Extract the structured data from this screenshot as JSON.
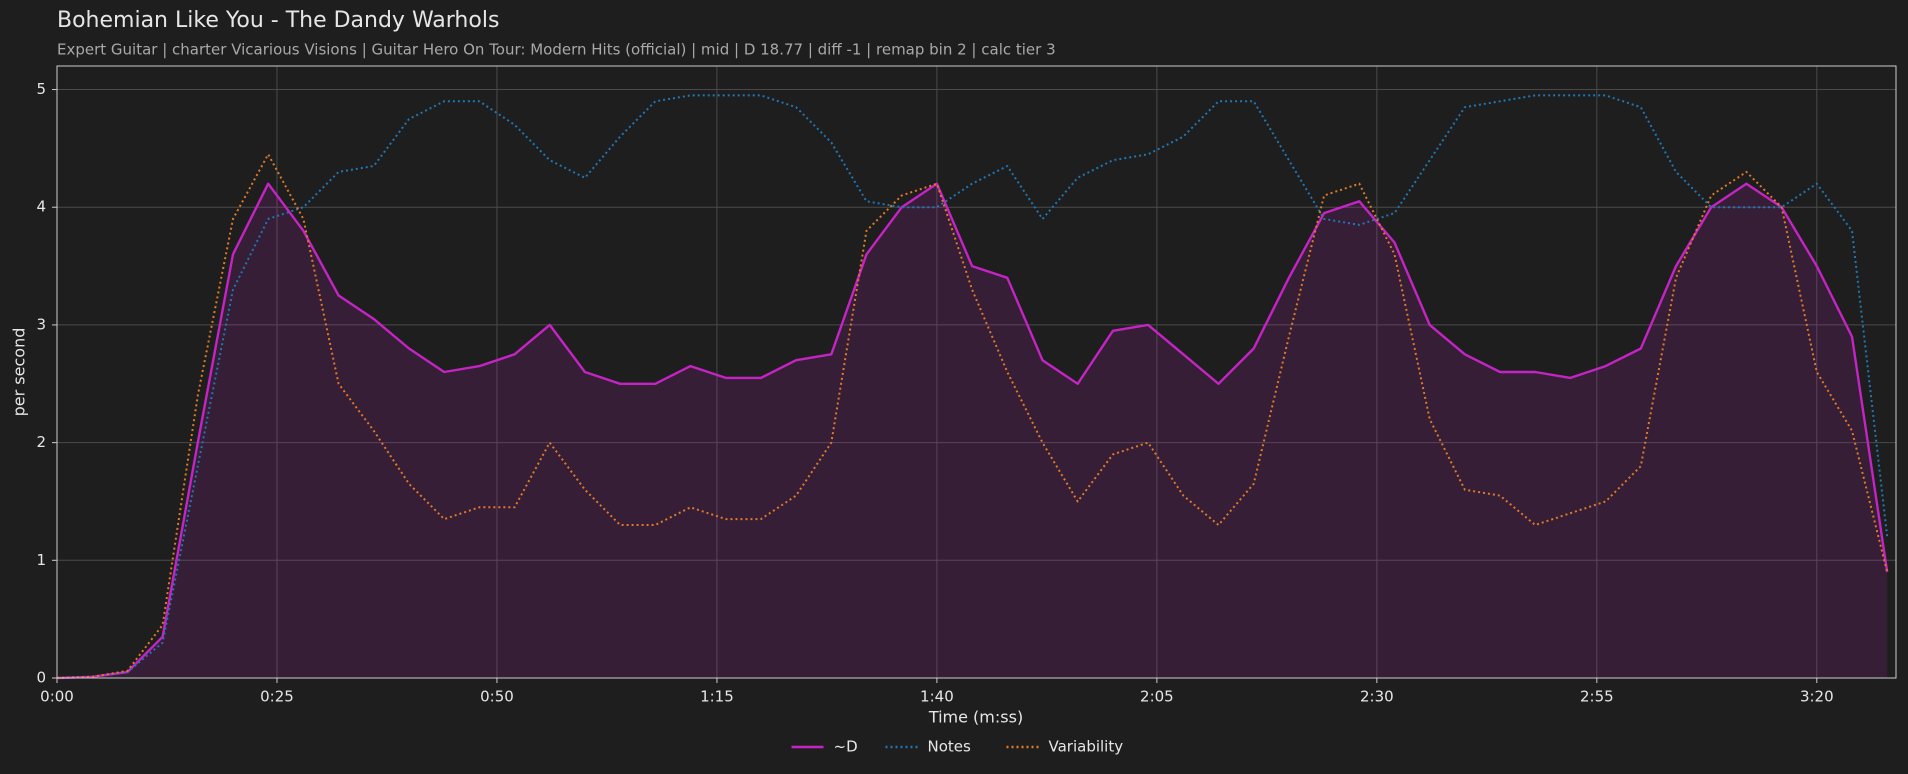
{
  "chart_data": {
    "type": "line",
    "title": "Bohemian Like You - The Dandy Warhols",
    "subtitle": "Expert Guitar  |  charter Vicarious Visions  |  Guitar Hero On Tour: Modern Hits (official)  |  mid  |  D 18.77  |  diff -1  |  remap bin 2  |  calc tier 3",
    "x_label": "Time (m:ss)",
    "y_label": "per second",
    "x": [
      0,
      4,
      8,
      12,
      16,
      20,
      24,
      28,
      32,
      36,
      40,
      44,
      48,
      52,
      56,
      60,
      64,
      68,
      72,
      76,
      80,
      84,
      88,
      92,
      96,
      100,
      104,
      108,
      112,
      116,
      120,
      124,
      128,
      132,
      136,
      140,
      144,
      148,
      152,
      156,
      160,
      164,
      168,
      172,
      176,
      180,
      184,
      188,
      192,
      196,
      200,
      204,
      208
    ],
    "series": [
      {
        "name": "~D",
        "color": "#c424c4",
        "style": "solid",
        "fill": true,
        "values": [
          0,
          0.01,
          0.05,
          0.35,
          2.0,
          3.6,
          4.2,
          3.8,
          3.25,
          3.05,
          2.8,
          2.6,
          2.65,
          2.75,
          3.0,
          2.6,
          2.5,
          2.5,
          2.65,
          2.55,
          2.55,
          2.7,
          2.75,
          3.6,
          4.0,
          4.2,
          3.5,
          3.4,
          2.7,
          2.5,
          2.95,
          3.0,
          2.75,
          2.5,
          2.8,
          3.4,
          3.95,
          4.05,
          3.7,
          3.0,
          2.75,
          2.6,
          2.6,
          2.55,
          2.65,
          2.8,
          3.5,
          4.0,
          4.2,
          4.0,
          3.5,
          2.9,
          0.9
        ]
      },
      {
        "name": "Notes",
        "color": "#1f77b4",
        "style": "dotted",
        "fill": false,
        "values": [
          0,
          0.01,
          0.05,
          0.3,
          1.8,
          3.3,
          3.9,
          4.0,
          4.3,
          4.35,
          4.75,
          4.9,
          4.9,
          4.7,
          4.4,
          4.25,
          4.6,
          4.9,
          4.95,
          4.95,
          4.95,
          4.85,
          4.55,
          4.05,
          4.0,
          4.0,
          4.2,
          4.35,
          3.9,
          4.25,
          4.4,
          4.45,
          4.6,
          4.9,
          4.9,
          4.4,
          3.9,
          3.85,
          3.95,
          4.4,
          4.85,
          4.9,
          4.95,
          4.95,
          4.95,
          4.85,
          4.3,
          4.0,
          4.0,
          4.0,
          4.2,
          3.8,
          1.2
        ]
      },
      {
        "name": "Variability",
        "color": "#e07a28",
        "style": "dotted",
        "fill": false,
        "values": [
          0,
          0.01,
          0.06,
          0.45,
          2.4,
          3.9,
          4.45,
          3.9,
          2.5,
          2.1,
          1.65,
          1.35,
          1.45,
          1.45,
          2.0,
          1.6,
          1.3,
          1.3,
          1.45,
          1.35,
          1.35,
          1.55,
          2.0,
          3.8,
          4.1,
          4.2,
          3.3,
          2.6,
          2.0,
          1.5,
          1.9,
          2.0,
          1.55,
          1.3,
          1.65,
          2.9,
          4.1,
          4.2,
          3.6,
          2.2,
          1.6,
          1.55,
          1.3,
          1.4,
          1.5,
          1.8,
          3.4,
          4.1,
          4.3,
          4.0,
          2.6,
          2.1,
          0.9
        ]
      }
    ],
    "xlim": [
      0,
      209
    ],
    "xticks": [
      {
        "value": 0,
        "label": "0:00"
      },
      {
        "value": 25,
        "label": "0:25"
      },
      {
        "value": 50,
        "label": "0:50"
      },
      {
        "value": 75,
        "label": "1:15"
      },
      {
        "value": 100,
        "label": "1:40"
      },
      {
        "value": 125,
        "label": "2:05"
      },
      {
        "value": 150,
        "label": "2:30"
      },
      {
        "value": 175,
        "label": "2:55"
      },
      {
        "value": 200,
        "label": "3:20"
      }
    ],
    "ylim": [
      0,
      5.2
    ],
    "yticks": [
      0,
      1,
      2,
      3,
      4,
      5
    ],
    "grid": true,
    "legend": "bottom"
  }
}
